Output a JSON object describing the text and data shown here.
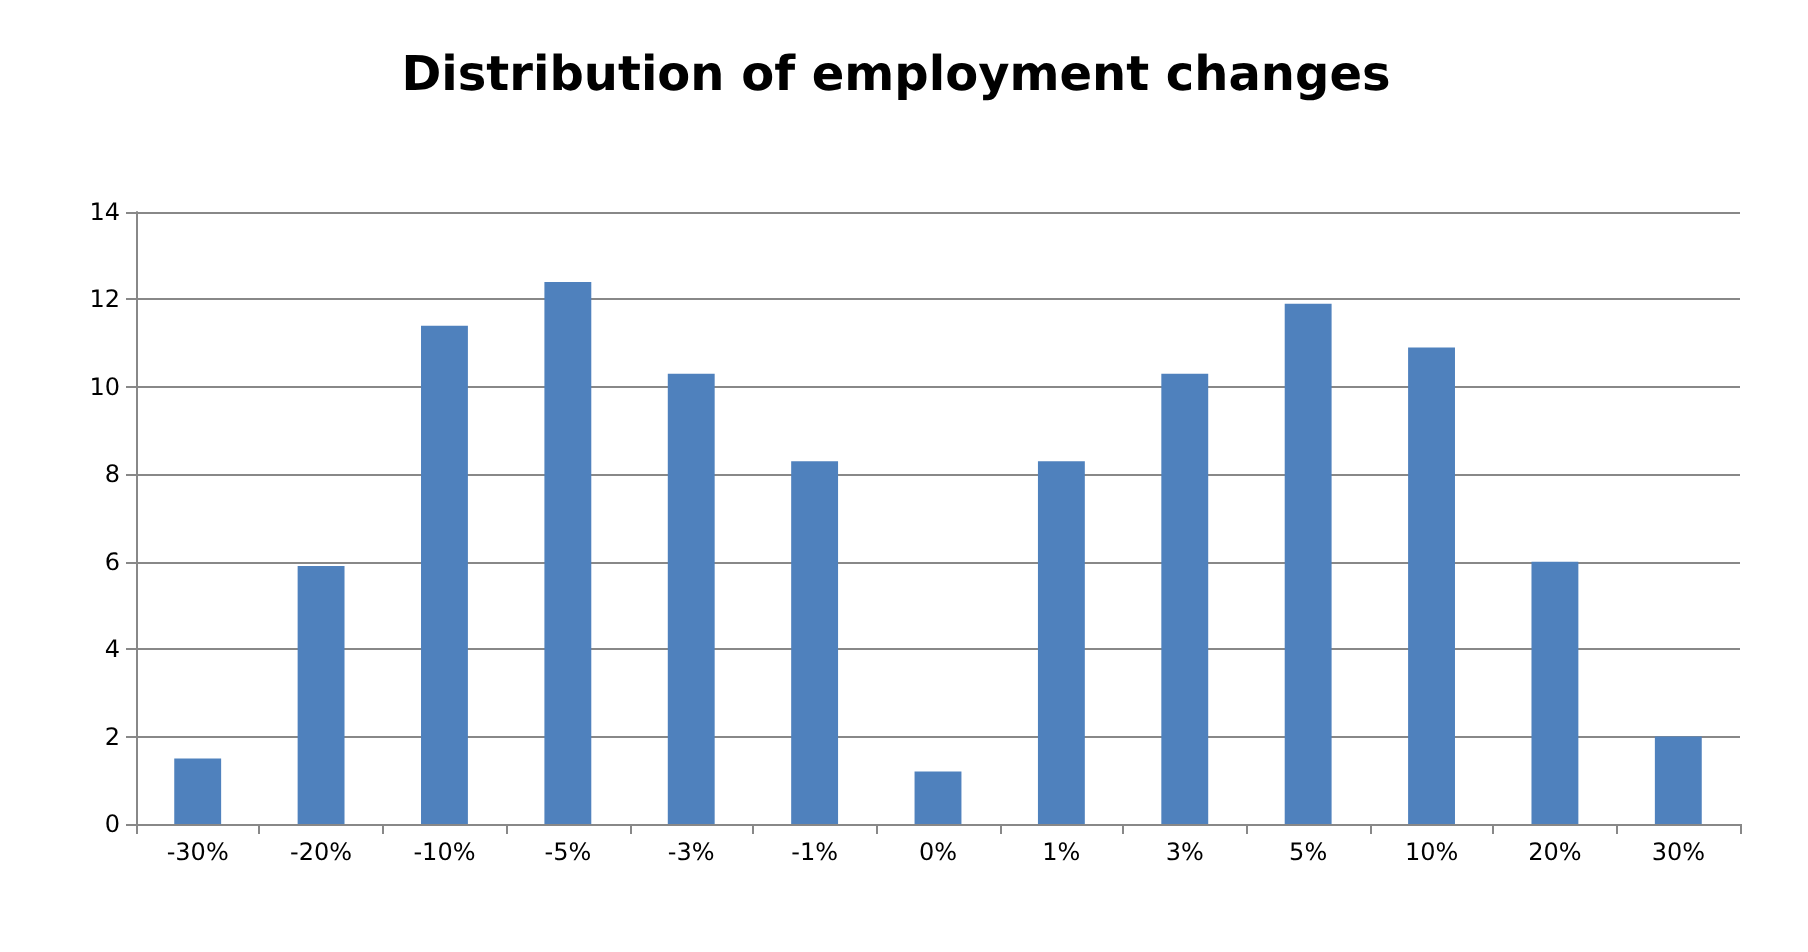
{
  "chart_data": {
    "type": "bar",
    "title": "Distribution of employment changes",
    "categories": [
      "-30%",
      "-20%",
      "-10%",
      "-5%",
      "-3%",
      "-1%",
      "0%",
      "1%",
      "3%",
      "5%",
      "10%",
      "20%",
      "30%"
    ],
    "values": [
      1.5,
      5.9,
      11.4,
      12.4,
      10.3,
      8.3,
      1.2,
      8.3,
      10.3,
      11.9,
      10.9,
      6.0,
      2.0
    ],
    "color": "#4f81bd",
    "ylim": [
      0,
      14
    ],
    "yticks": [
      0,
      2,
      4,
      6,
      8,
      10,
      12,
      14
    ],
    "grid": "y"
  }
}
